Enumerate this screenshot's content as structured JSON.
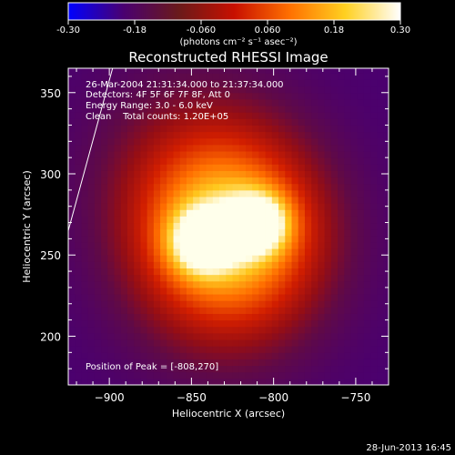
{
  "colorbar": {
    "ticks": [
      "-0.30",
      "-0.18",
      "-0.060",
      "0.060",
      "0.18",
      "0.30"
    ],
    "tick_values": [
      -0.3,
      -0.18,
      -0.06,
      0.06,
      0.18,
      0.3
    ],
    "range": [
      -0.3,
      0.3
    ],
    "units_label": "(photons cm⁻² s⁻¹ asec⁻²)",
    "stops": [
      "#0000ff",
      "#4a0070",
      "#6a1a1a",
      "#c81000",
      "#ff7000",
      "#ffd020",
      "#ffffff"
    ]
  },
  "chart_data": {
    "type": "heatmap",
    "title": "Reconstructed RHESSI Image",
    "xlabel": "Heliocentric X (arcsec)",
    "ylabel": "Heliocentric Y (arcsec)",
    "xlim": [
      -925,
      -730
    ],
    "ylim": [
      170,
      365
    ],
    "xticks": [
      -900,
      -850,
      -800,
      -750
    ],
    "xtick_labels": [
      "−900",
      "−850",
      "−800",
      "−750"
    ],
    "yticks": [
      200,
      250,
      300,
      350
    ],
    "ytick_labels": [
      "200",
      "250",
      "300",
      "350"
    ],
    "annotations": [
      "26-Mar-2004 21:31:34.000 to 21:37:34.000",
      "Detectors: 4F 5F 6F 7F 8F, Att 0",
      "Energy Range: 3.0 - 6.0 keV",
      "Clean    Total counts: 1.20E+05"
    ],
    "peak_label": "Position of Peak = [-808,270]",
    "peak": [
      -808,
      270
    ],
    "background_value": 0.0,
    "sources": [
      {
        "x": -808,
        "y": 270,
        "sigma": 13,
        "amp": 0.16
      },
      {
        "x": -845,
        "y": 258,
        "sigma": 14,
        "amp": 0.14
      },
      {
        "x": -826,
        "y": 264,
        "sigma": 38,
        "amp": 0.22
      },
      {
        "x": -846,
        "y": 305,
        "sigma": 42,
        "amp": 0.07
      },
      {
        "x": -830,
        "y": 225,
        "sigma": 40,
        "amp": 0.05
      }
    ],
    "limb_line": [
      [
        -925,
        265
      ],
      [
        -898,
        365
      ]
    ]
  },
  "footer": {
    "timestamp": "28-Jun-2013 16:45"
  }
}
